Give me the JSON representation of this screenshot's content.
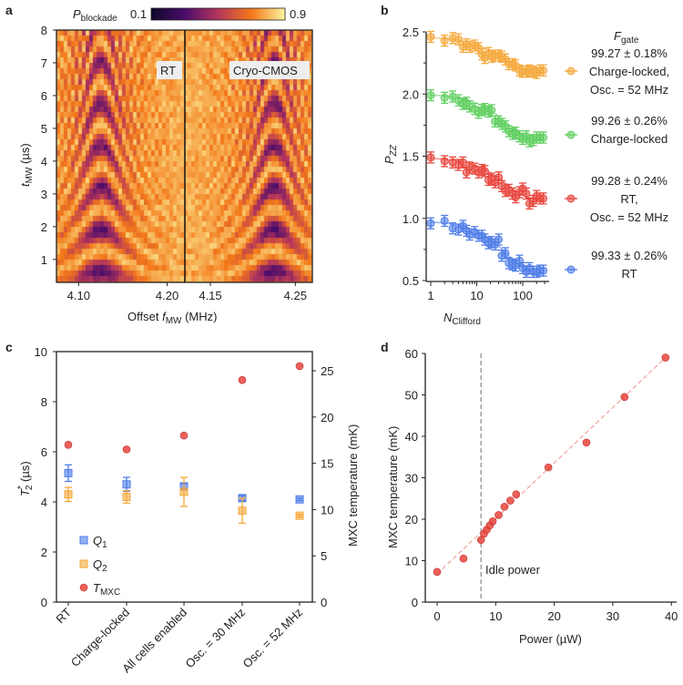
{
  "chart_data": [
    {
      "panel": "a",
      "type": "heatmap",
      "colorbar": {
        "label_main": "P",
        "label_sub": "blockade",
        "min": "0.1",
        "max": "0.9",
        "colormap": "inferno"
      },
      "ylabel_main": "t",
      "ylabel_sub": "MW",
      "ylabel_unit": " (µs)",
      "xlabel_pre": "Offset ",
      "xlabel_main": "f",
      "xlabel_sub": "MW",
      "xlabel_unit": " (MHz)",
      "yticks": [
        "1",
        "2",
        "3",
        "4",
        "5",
        "6",
        "7",
        "8"
      ],
      "ylim": [
        0.3,
        8
      ],
      "subplots": [
        {
          "name": "RT",
          "xlim": [
            4.075,
            4.22
          ],
          "xticks": [
            "4.10",
            "4.20"
          ]
        },
        {
          "name": "Cryo-CMOS",
          "xlim": [
            4.12,
            4.27
          ],
          "xticks": [
            "4.15",
            "4.25"
          ]
        }
      ]
    },
    {
      "panel": "b",
      "type": "scatter",
      "xscale": "log",
      "xlabel_main": "N",
      "xlabel_sub": "Clifford",
      "ylabel_main": "P",
      "ylabel_sub": "ZZ",
      "ylim": [
        0.5,
        2.5
      ],
      "yticks": [
        "0.5",
        "1.0",
        "1.5",
        "2.0",
        "2.5"
      ],
      "xticks": [
        "1",
        "10",
        "100"
      ],
      "legend_title_main": "F",
      "legend_title_sub": "gate",
      "x": [
        1,
        2,
        3,
        4,
        5,
        6,
        7,
        9,
        11,
        13,
        15,
        18,
        21,
        25,
        30,
        35,
        42,
        50,
        60,
        70,
        85,
        100,
        120,
        140,
        170,
        200,
        240,
        280
      ],
      "series": [
        {
          "name": [
            "99.27 ± 0.18%",
            "Charge-locked,",
            "Osc. = 52 MHz"
          ],
          "color": "#f5a83a",
          "values": [
            2.46,
            2.43,
            2.45,
            2.44,
            2.38,
            2.4,
            2.38,
            2.39,
            2.37,
            2.32,
            2.29,
            2.33,
            2.3,
            2.31,
            2.31,
            2.3,
            2.28,
            2.24,
            2.24,
            2.23,
            2.19,
            2.18,
            2.18,
            2.19,
            2.18,
            2.17,
            2.19,
            2.19
          ]
        },
        {
          "name": [
            "99.26 ± 0.26%",
            "Charge-locked"
          ],
          "color": "#5fcf5f",
          "values": [
            1.99,
            1.97,
            1.98,
            1.95,
            1.92,
            1.93,
            1.9,
            1.88,
            1.85,
            1.87,
            1.88,
            1.86,
            1.87,
            1.78,
            1.78,
            1.76,
            1.74,
            1.7,
            1.68,
            1.69,
            1.66,
            1.64,
            1.66,
            1.62,
            1.63,
            1.65,
            1.65,
            1.65
          ]
        },
        {
          "name": [
            "99.28 ± 0.24%",
            "RT,",
            "Osc. = 52 MHz"
          ],
          "color": "#e8453c",
          "values": [
            1.49,
            1.46,
            1.45,
            1.43,
            1.45,
            1.37,
            1.41,
            1.4,
            1.37,
            1.39,
            1.38,
            1.31,
            1.32,
            1.29,
            1.33,
            1.26,
            1.22,
            1.23,
            1.2,
            1.17,
            1.21,
            1.24,
            1.2,
            1.12,
            1.14,
            1.18,
            1.16,
            1.16
          ]
        },
        {
          "name": [
            "99.33 ± 0.26%",
            "RT"
          ],
          "color": "#4f7de8",
          "values": [
            0.96,
            0.98,
            0.92,
            0.91,
            0.94,
            0.9,
            0.87,
            0.89,
            0.86,
            0.86,
            0.83,
            0.8,
            0.81,
            0.79,
            0.83,
            0.7,
            0.72,
            0.64,
            0.63,
            0.62,
            0.66,
            0.6,
            0.57,
            0.6,
            0.57,
            0.57,
            0.58,
            0.58
          ]
        }
      ]
    },
    {
      "panel": "c",
      "type": "scatter",
      "categories": [
        "RT",
        "Charge-locked",
        "All cells enabled",
        "Osc. = 30 MHz",
        "Osc. = 52 MHz"
      ],
      "ylabel_main": "T",
      "ylabel_sup": "*",
      "ylabel_sub": "2",
      "ylabel_unit": " (µs)",
      "ylabel_right": "MXC temperature (mK)",
      "ylim": [
        0,
        10
      ],
      "ylim_right": [
        0,
        27.07
      ],
      "yticks": [
        "0",
        "2",
        "4",
        "6",
        "8",
        "10"
      ],
      "yticks_right": [
        "0",
        "5",
        "10",
        "15",
        "20",
        "25"
      ],
      "series": [
        {
          "name_main": "Q",
          "name_sub": "1",
          "axis": "left",
          "marker": "square",
          "color": "#4f7de8",
          "values": [
            5.15,
            4.7,
            4.62,
            4.15,
            4.1
          ],
          "errors": [
            0.33,
            0.28,
            0.1,
            0.1,
            0.05
          ]
        },
        {
          "name_main": "Q",
          "name_sub": "2",
          "axis": "left",
          "marker": "square",
          "color": "#f5a83a",
          "values": [
            4.3,
            4.2,
            4.4,
            3.65,
            3.45
          ],
          "errors": [
            0.28,
            0.25,
            0.58,
            0.5,
            0.05
          ]
        },
        {
          "name_main": "T",
          "name_sub": "MXC",
          "axis": "right",
          "marker": "circle",
          "color": "#e8453c",
          "values": [
            17,
            16.5,
            18,
            24,
            25.5
          ]
        }
      ]
    },
    {
      "panel": "d",
      "type": "scatter",
      "xlabel": "Power (µW)",
      "ylabel": "MXC temperature (mK)",
      "xlim": [
        -2,
        40.5
      ],
      "ylim": [
        0,
        60
      ],
      "xticks": [
        "0",
        "10",
        "20",
        "30",
        "40"
      ],
      "yticks": [
        "0",
        "10",
        "20",
        "30",
        "40",
        "50",
        "60"
      ],
      "x": [
        0,
        4.5,
        7.5,
        8,
        8.5,
        9,
        9.5,
        10.5,
        11.5,
        12.5,
        13.5,
        19,
        25.5,
        32,
        39
      ],
      "y": [
        7.3,
        10.5,
        15,
        16.5,
        17.5,
        18.5,
        19.5,
        21,
        23,
        24.5,
        26,
        32.5,
        38.5,
        49.5,
        59
      ],
      "color": "#e8453c",
      "fit_line": {
        "x": [
          0,
          39
        ],
        "y": [
          6.8,
          59
        ]
      },
      "annotation": {
        "label": "Idle power",
        "x": 7.5
      }
    }
  ]
}
